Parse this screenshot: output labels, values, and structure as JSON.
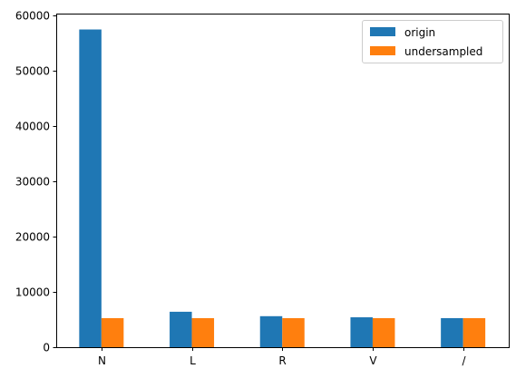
{
  "chart_data": {
    "type": "bar",
    "categories": [
      "N",
      "L",
      "R",
      "V",
      "/"
    ],
    "series": [
      {
        "name": "origin",
        "values": [
          57400,
          6400,
          5600,
          5400,
          5250
        ],
        "color": "#1f77b4"
      },
      {
        "name": "undersampled",
        "values": [
          5250,
          5250,
          5250,
          5250,
          5250
        ],
        "color": "#ff7f0e"
      }
    ],
    "title": "",
    "xlabel": "",
    "ylabel": "",
    "ylim": [
      0,
      60270
    ],
    "yticks": [
      0,
      10000,
      20000,
      30000,
      40000,
      50000,
      60000
    ],
    "grid": false,
    "legend_position": "top-right"
  }
}
